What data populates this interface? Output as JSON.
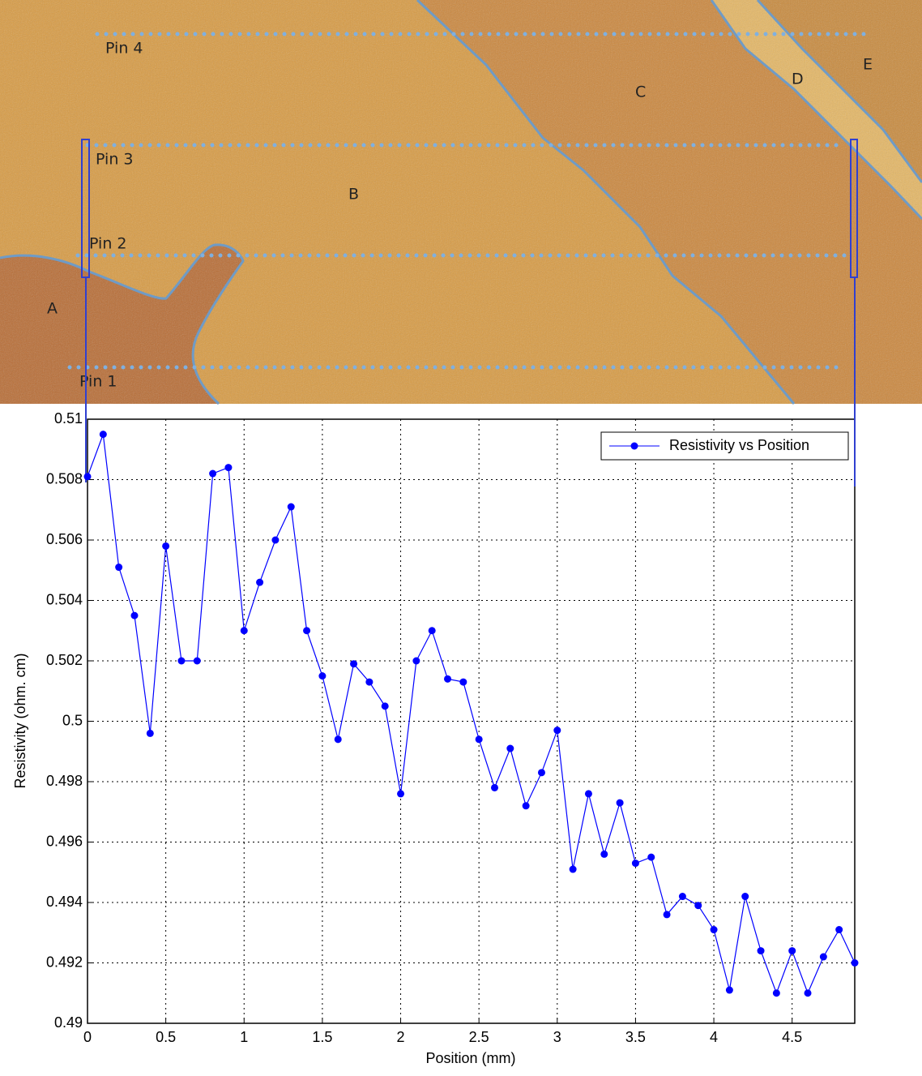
{
  "image": {
    "labels": [
      "Pin 4",
      "Pin 3",
      "Pin 2",
      "Pin 1",
      "A",
      "B",
      "C",
      "D",
      "E"
    ]
  },
  "chart_data": {
    "type": "line",
    "xlabel": "Position (mm)",
    "ylabel": "Resistivity (ohm. cm)",
    "x": [
      0,
      0.1,
      0.2,
      0.3,
      0.4,
      0.5,
      0.6,
      0.7,
      0.8,
      0.9,
      1,
      1.1,
      1.2,
      1.3,
      1.4,
      1.5,
      1.6,
      1.7,
      1.8,
      1.9,
      2,
      2.1,
      2.2,
      2.3,
      2.4,
      2.5,
      2.6,
      2.7,
      2.8,
      2.9,
      3,
      3.1,
      3.2,
      3.3,
      3.4,
      3.5,
      3.6,
      3.7,
      3.8,
      3.9,
      4,
      4.1,
      4.2,
      4.3,
      4.4,
      4.5,
      4.6,
      4.7,
      4.8,
      4.9
    ],
    "series": [
      {
        "name": "Resistivity vs Position",
        "color": "#0000ff",
        "values": [
          0.5081,
          0.5095,
          0.5051,
          0.5035,
          0.4996,
          0.5058,
          0.502,
          0.502,
          0.5082,
          0.5084,
          0.503,
          0.5046,
          0.506,
          0.5071,
          0.503,
          0.5015,
          0.4994,
          0.5019,
          0.5013,
          0.5005,
          0.4976,
          0.502,
          0.503,
          0.5014,
          0.5013,
          0.4994,
          0.4978,
          0.4991,
          0.4972,
          0.4983,
          0.4997,
          0.4951,
          0.4976,
          0.4956,
          0.4973,
          0.4953,
          0.4955,
          0.4936,
          0.4942,
          0.4939,
          0.4931,
          0.4911,
          0.4942,
          0.4924,
          0.491,
          0.4924,
          0.491,
          0.4922,
          0.4931,
          0.492
        ]
      }
    ],
    "xlim": [
      0,
      4.9
    ],
    "ylim": [
      0.49,
      0.51
    ],
    "xticks": [
      0,
      0.5,
      1,
      1.5,
      2,
      2.5,
      3,
      3.5,
      4,
      4.5
    ],
    "yticks": [
      0.49,
      0.492,
      0.494,
      0.496,
      0.498,
      0.5,
      0.502,
      0.504,
      0.506,
      0.508,
      0.51
    ],
    "grid": true,
    "legend": "upper right"
  }
}
